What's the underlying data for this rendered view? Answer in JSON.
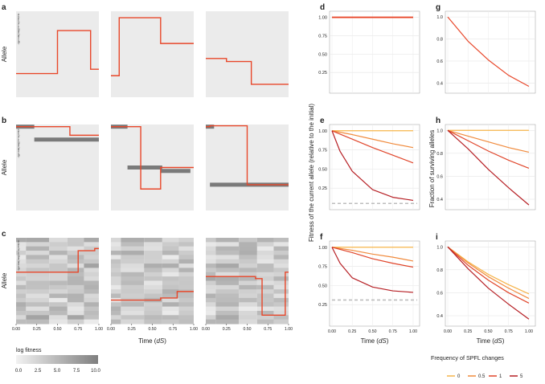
{
  "panel_letters": [
    "a",
    "b",
    "c",
    "d",
    "e",
    "f",
    "g",
    "h",
    "i"
  ],
  "amino_acids": [
    "A",
    "C",
    "D",
    "E",
    "F",
    "G",
    "H",
    "I",
    "K",
    "L",
    "M",
    "N",
    "P",
    "Q",
    "R",
    "S",
    "T",
    "V",
    "W",
    "Y"
  ],
  "labels": {
    "allele": "Allele",
    "time_prefix": "Time (",
    "time_var": "dS",
    "time_suffix": ")",
    "fitness_ylabel": "Fitness of the current allele  (relative to the initial)",
    "surviving_ylabel": "Fraction of surviving alleles",
    "log_fitness": "log fitness",
    "legend_title": "Frequency of SPFL changes"
  },
  "colors": {
    "panel_bg": "#ebebeb",
    "grid": "#ffffff",
    "red": "#e8472a",
    "bar": "#7a7a7a",
    "dashed": "#bdbdbd",
    "freq0": "#f6b44a",
    "freq05": "#f08a3c",
    "freq1": "#e0452a",
    "freq5": "#b61f24"
  },
  "chart_data": [
    {
      "panel": "a",
      "type": "line",
      "title": "",
      "xlabel": "",
      "ylabel": "Allele",
      "xlim": [
        0,
        1
      ],
      "ylim": [
        0,
        20
      ],
      "subplots": [
        {
          "x": [
            0,
            0.5,
            0.5,
            0.9,
            0.9,
            1
          ],
          "y": [
            14.5,
            14.5,
            4.5,
            4.5,
            13.5,
            13.5
          ]
        },
        {
          "x": [
            0,
            0.1,
            0.1,
            0.6,
            0.6,
            1
          ],
          "y": [
            15,
            15,
            1.5,
            1.5,
            7.5,
            7.5
          ]
        },
        {
          "x": [
            0,
            0.25,
            0.25,
            0.55,
            0.55,
            1
          ],
          "y": [
            11,
            11,
            11.7,
            11.7,
            17,
            17
          ]
        }
      ]
    },
    {
      "panel": "b",
      "type": "line",
      "title": "",
      "xlabel": "",
      "ylabel": "Allele",
      "xlim": [
        0,
        1
      ],
      "ylim": [
        0,
        20
      ],
      "subplots": [
        {
          "x": [
            0,
            0.65,
            0.65,
            1
          ],
          "y": [
            0.5,
            0.5,
            2.5,
            2.5
          ],
          "bars": [
            {
              "x0": 0,
              "x1": 0.22,
              "y": 0.5
            },
            {
              "x0": 0.22,
              "x1": 1,
              "y": 3.5
            }
          ]
        },
        {
          "x": [
            0,
            0.36,
            0.36,
            0.6,
            0.6,
            1
          ],
          "y": [
            0.5,
            0.5,
            15,
            15,
            10,
            10
          ],
          "bars": [
            {
              "x0": 0,
              "x1": 0.2,
              "y": 0.5
            },
            {
              "x0": 0.2,
              "x1": 0.62,
              "y": 10
            },
            {
              "x0": 0.6,
              "x1": 0.96,
              "y": 10.8
            }
          ]
        },
        {
          "x": [
            0,
            0.05,
            0.05,
            0.5,
            0.5,
            1
          ],
          "y": [
            0.5,
            0.5,
            0.3,
            0.3,
            14,
            14
          ],
          "bars": [
            {
              "x0": 0,
              "x1": 0.1,
              "y": 0.5
            },
            {
              "x0": 0.05,
              "x1": 1,
              "y": 14
            }
          ]
        }
      ]
    },
    {
      "panel": "c",
      "type": "heatmap",
      "title": "",
      "xlabel": "Time (dS)",
      "ylabel": "Allele",
      "xlim": [
        0,
        1
      ],
      "ylim": [
        0,
        20
      ],
      "colorbar": {
        "label": "log fitness",
        "ticks": [
          "0.0",
          "2.5",
          "5.0",
          "7.5",
          "10.0"
        ],
        "min": 0,
        "max": 10
      },
      "x_ticks": [
        "0.00",
        "0.25",
        "0.50",
        "0.75",
        "1.00"
      ],
      "subplots": [
        {
          "x": [
            0,
            0.75,
            0.75,
            0.95,
            0.95,
            1
          ],
          "y": [
            8,
            8,
            3,
            3,
            2.5,
            2.5
          ]
        },
        {
          "x": [
            0,
            0.6,
            0.6,
            0.8,
            0.8,
            1
          ],
          "y": [
            14.5,
            14.5,
            14,
            14,
            12.5,
            12.5
          ]
        },
        {
          "x": [
            0,
            0.6,
            0.6,
            0.68,
            0.68,
            0.82,
            0.82,
            0.96,
            0.96,
            1
          ],
          "y": [
            9,
            9,
            9.5,
            9.5,
            18,
            18,
            18,
            18,
            8,
            8
          ]
        }
      ]
    },
    {
      "panel": "d",
      "type": "line",
      "title": "",
      "xlabel": "",
      "ylabel": "",
      "xlim": [
        0,
        1.05
      ],
      "ylim": [
        0,
        1.05
      ],
      "y_ticks": [
        "0.25",
        "0.50",
        "0.75",
        "1.00"
      ],
      "series": [
        {
          "name": "all",
          "x": [
            0,
            1
          ],
          "y": [
            1,
            1
          ]
        }
      ]
    },
    {
      "panel": "e",
      "type": "line",
      "title": "",
      "xlabel": "",
      "ylabel": "Fitness of the current allele (relative to the initial)",
      "xlim": [
        0,
        1.05
      ],
      "ylim": [
        0,
        1.05
      ],
      "y_ticks": [
        "0.25",
        "0.50",
        "0.75",
        "1.00"
      ],
      "reference_line": 0.05,
      "series": [
        {
          "name": "0",
          "x": [
            0,
            1.0
          ],
          "y": [
            1,
            1
          ]
        },
        {
          "name": "0.5",
          "x": [
            0,
            0.25,
            0.5,
            0.75,
            1.0
          ],
          "y": [
            1,
            0.95,
            0.89,
            0.83,
            0.78
          ]
        },
        {
          "name": "1",
          "x": [
            0,
            0.25,
            0.5,
            0.75,
            1.0
          ],
          "y": [
            1,
            0.89,
            0.78,
            0.68,
            0.58
          ]
        },
        {
          "name": "5",
          "x": [
            0,
            0.1,
            0.25,
            0.5,
            0.75,
            1.0
          ],
          "y": [
            1,
            0.73,
            0.47,
            0.23,
            0.13,
            0.09
          ]
        }
      ]
    },
    {
      "panel": "f",
      "type": "line",
      "title": "",
      "xlabel": "Time (dS)",
      "ylabel": "",
      "xlim": [
        0,
        1.05
      ],
      "ylim": [
        0,
        1.05
      ],
      "y_ticks": [
        "0.25",
        "0.50",
        "0.75",
        "1.00"
      ],
      "x_ticks": [
        "0.00",
        "0.25",
        "0.50",
        "0.75",
        "1.00"
      ],
      "reference_line": 0.31,
      "series": [
        {
          "name": "0",
          "x": [
            0,
            1.0
          ],
          "y": [
            1,
            1
          ]
        },
        {
          "name": "0.5",
          "x": [
            0,
            0.25,
            0.5,
            0.75,
            1.0
          ],
          "y": [
            1,
            0.96,
            0.91,
            0.87,
            0.82
          ]
        },
        {
          "name": "1",
          "x": [
            0,
            0.25,
            0.5,
            0.75,
            1.0
          ],
          "y": [
            1,
            0.93,
            0.85,
            0.79,
            0.74
          ]
        },
        {
          "name": "5",
          "x": [
            0,
            0.1,
            0.25,
            0.5,
            0.75,
            1.0
          ],
          "y": [
            1,
            0.79,
            0.6,
            0.48,
            0.43,
            0.41
          ]
        }
      ]
    },
    {
      "panel": "g",
      "type": "line",
      "title": "",
      "xlabel": "",
      "ylabel": "",
      "xlim": [
        0,
        1.05
      ],
      "ylim": [
        0.33,
        1.03
      ],
      "y_ticks": [
        "0.4",
        "0.6",
        "0.8",
        "1.0"
      ],
      "series": [
        {
          "name": "all",
          "x": [
            0,
            0.25,
            0.5,
            0.75,
            1.0
          ],
          "y": [
            1,
            0.78,
            0.61,
            0.47,
            0.37
          ]
        }
      ]
    },
    {
      "panel": "h",
      "type": "line",
      "title": "",
      "xlabel": "",
      "ylabel": "Fraction of surviving alleles",
      "xlim": [
        0,
        1.05
      ],
      "ylim": [
        0.33,
        1.03
      ],
      "y_ticks": [
        "0.4",
        "0.6",
        "0.8",
        "1.0"
      ],
      "series": [
        {
          "name": "0",
          "x": [
            0,
            1.0
          ],
          "y": [
            1,
            1
          ]
        },
        {
          "name": "0.5",
          "x": [
            0,
            0.25,
            0.5,
            0.75,
            1.0
          ],
          "y": [
            1,
            0.95,
            0.9,
            0.85,
            0.81
          ]
        },
        {
          "name": "1",
          "x": [
            0,
            0.25,
            0.5,
            0.75,
            1.0
          ],
          "y": [
            1,
            0.91,
            0.82,
            0.74,
            0.67
          ]
        },
        {
          "name": "5",
          "x": [
            0,
            0.25,
            0.5,
            0.75,
            1.0
          ],
          "y": [
            1,
            0.84,
            0.66,
            0.5,
            0.35
          ]
        }
      ]
    },
    {
      "panel": "i",
      "type": "line",
      "title": "",
      "xlabel": "",
      "ylabel": "",
      "xlim": [
        0,
        1.05
      ],
      "ylim": [
        0.33,
        1.03
      ],
      "y_ticks": [
        "0.4",
        "0.6",
        "0.8",
        "1.0"
      ],
      "x_ticks": [
        "0.00",
        "0.25",
        "0.50",
        "0.75",
        "1.00"
      ],
      "series": [
        {
          "name": "0",
          "x": [
            0,
            0.25,
            0.5,
            0.75,
            1.0
          ],
          "y": [
            1,
            0.87,
            0.76,
            0.67,
            0.59
          ]
        },
        {
          "name": "0.5",
          "x": [
            0,
            0.25,
            0.5,
            0.75,
            1.0
          ],
          "y": [
            1,
            0.86,
            0.74,
            0.64,
            0.55
          ]
        },
        {
          "name": "1",
          "x": [
            0,
            0.25,
            0.5,
            0.75,
            1.0
          ],
          "y": [
            1,
            0.84,
            0.71,
            0.6,
            0.51
          ]
        },
        {
          "name": "5",
          "x": [
            0,
            0.25,
            0.5,
            0.75,
            1.0
          ],
          "y": [
            1,
            0.81,
            0.64,
            0.5,
            0.37
          ]
        }
      ]
    }
  ],
  "legend": {
    "title": "Frequency of SPFL changes",
    "items": [
      {
        "label": "0",
        "color": "#f6b44a"
      },
      {
        "label": "0.5",
        "color": "#f08a3c"
      },
      {
        "label": "1",
        "color": "#e0452a"
      },
      {
        "label": "5",
        "color": "#b61f24"
      }
    ]
  }
}
